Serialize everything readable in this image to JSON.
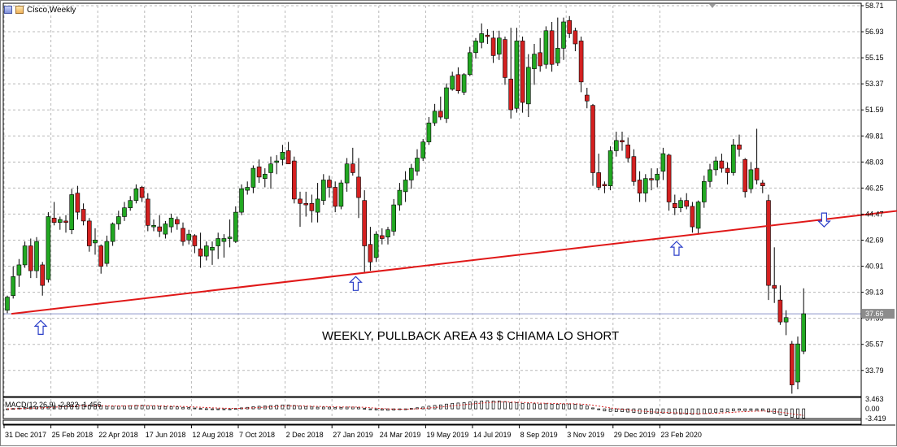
{
  "window": {
    "title": "Cisco,Weekly",
    "icon_names": [
      "window-icon",
      "chart-icon"
    ]
  },
  "colors": {
    "bull": "#22a822",
    "bear": "#d42020",
    "wick": "#000000",
    "grid": "#b8b8b8",
    "trendline": "#e01818",
    "arrow": "#2a3ec8",
    "current_price_line": "#8a93c9",
    "current_price_box": "#8c8c8c"
  },
  "chart_data": [
    {
      "type": "candlestick",
      "title": "Cisco,Weekly",
      "y_ticks": [
        "58.71",
        "56.93",
        "55.15",
        "53.37",
        "51.59",
        "49.81",
        "48.03",
        "46.25",
        "44.47",
        "42.69",
        "40.91",
        "39.13",
        "37.35",
        "35.57",
        "33.79"
      ],
      "ylim": [
        32.0,
        58.71
      ],
      "x_ticks": [
        "31 Dec 2017",
        "25 Feb 2018",
        "22 Apr 2018",
        "17 Jun 2018",
        "12 Aug 2018",
        "7 Oct 2018",
        "2 Dec 2018",
        "27 Jan 2019",
        "24 Mar 2019",
        "19 May 2019",
        "14 Jul 2019",
        "8 Sep 2019",
        "3 Nov 2019",
        "29 Dec 2019",
        "23 Feb 2020"
      ],
      "current_price": "37.66",
      "annotation": "WEEKLY, PULLBACK AREA 43 $ CHIAMA LO SHORT",
      "trendline": {
        "x": [
          0.7,
          163
        ],
        "y": [
          37.66,
          45.2
        ]
      },
      "arrows": [
        {
          "direction": "up",
          "x": 5.7,
          "y": 37.2
        },
        {
          "direction": "up",
          "x": 59.5,
          "y": 40.2
        },
        {
          "direction": "up",
          "x": 114.3,
          "y": 42.6
        },
        {
          "direction": "down",
          "x": 139.5,
          "y": 43.6
        }
      ],
      "candles": [
        {
          "o": 37.9,
          "h": 38.9,
          "l": 37.7,
          "c": 38.8
        },
        {
          "o": 38.9,
          "h": 40.9,
          "l": 38.7,
          "c": 40.2
        },
        {
          "o": 40.3,
          "h": 41.4,
          "l": 39.5,
          "c": 41.0
        },
        {
          "o": 41.0,
          "h": 42.6,
          "l": 40.8,
          "c": 42.3
        },
        {
          "o": 42.3,
          "h": 42.8,
          "l": 40.1,
          "c": 40.6
        },
        {
          "o": 40.6,
          "h": 42.9,
          "l": 40.1,
          "c": 42.6
        },
        {
          "o": 41.0,
          "h": 41.2,
          "l": 38.9,
          "c": 39.6
        },
        {
          "o": 40.0,
          "h": 44.6,
          "l": 39.8,
          "c": 44.3
        },
        {
          "o": 44.2,
          "h": 45.3,
          "l": 43.7,
          "c": 43.9
        },
        {
          "o": 43.9,
          "h": 44.3,
          "l": 43.4,
          "c": 44.1
        },
        {
          "o": 44.0,
          "h": 44.4,
          "l": 43.2,
          "c": 43.9
        },
        {
          "o": 43.4,
          "h": 46.2,
          "l": 43.1,
          "c": 45.8
        },
        {
          "o": 45.9,
          "h": 46.4,
          "l": 44.1,
          "c": 44.6
        },
        {
          "o": 44.8,
          "h": 45.2,
          "l": 43.7,
          "c": 44.0
        },
        {
          "o": 44.0,
          "h": 44.2,
          "l": 41.9,
          "c": 42.3
        },
        {
          "o": 42.5,
          "h": 43.5,
          "l": 41.7,
          "c": 42.7
        },
        {
          "o": 42.3,
          "h": 42.4,
          "l": 40.4,
          "c": 40.9
        },
        {
          "o": 41.1,
          "h": 43.0,
          "l": 40.9,
          "c": 42.6
        },
        {
          "o": 42.6,
          "h": 43.9,
          "l": 42.3,
          "c": 43.8
        },
        {
          "o": 43.8,
          "h": 44.7,
          "l": 43.4,
          "c": 44.3
        },
        {
          "o": 44.3,
          "h": 45.3,
          "l": 44.0,
          "c": 44.9
        },
        {
          "o": 44.9,
          "h": 45.7,
          "l": 44.7,
          "c": 45.4
        },
        {
          "o": 45.4,
          "h": 46.5,
          "l": 45.2,
          "c": 46.2
        },
        {
          "o": 46.3,
          "h": 46.4,
          "l": 45.3,
          "c": 45.6
        },
        {
          "o": 45.5,
          "h": 45.9,
          "l": 43.3,
          "c": 43.7
        },
        {
          "o": 43.6,
          "h": 44.1,
          "l": 43.3,
          "c": 43.7
        },
        {
          "o": 43.6,
          "h": 44.4,
          "l": 42.9,
          "c": 43.3
        },
        {
          "o": 43.1,
          "h": 44.0,
          "l": 42.8,
          "c": 43.8
        },
        {
          "o": 43.6,
          "h": 44.5,
          "l": 43.2,
          "c": 44.2
        },
        {
          "o": 44.1,
          "h": 44.3,
          "l": 43.4,
          "c": 43.8
        },
        {
          "o": 43.5,
          "h": 43.9,
          "l": 42.3,
          "c": 42.6
        },
        {
          "o": 42.7,
          "h": 43.4,
          "l": 42.4,
          "c": 43.1
        },
        {
          "o": 43.0,
          "h": 43.1,
          "l": 41.8,
          "c": 42.3
        },
        {
          "o": 42.1,
          "h": 43.2,
          "l": 40.8,
          "c": 41.6
        },
        {
          "o": 41.6,
          "h": 42.6,
          "l": 41.3,
          "c": 42.3
        },
        {
          "o": 42.0,
          "h": 42.6,
          "l": 41.0,
          "c": 42.2
        },
        {
          "o": 42.3,
          "h": 43.2,
          "l": 41.4,
          "c": 42.8
        },
        {
          "o": 42.6,
          "h": 43.1,
          "l": 41.5,
          "c": 42.8
        },
        {
          "o": 42.8,
          "h": 44.1,
          "l": 42.2,
          "c": 42.9
        },
        {
          "o": 42.6,
          "h": 45.0,
          "l": 42.5,
          "c": 44.6
        },
        {
          "o": 44.6,
          "h": 46.5,
          "l": 44.4,
          "c": 46.2
        },
        {
          "o": 46.1,
          "h": 46.7,
          "l": 45.8,
          "c": 46.3
        },
        {
          "o": 46.3,
          "h": 47.8,
          "l": 45.9,
          "c": 47.6
        },
        {
          "o": 47.7,
          "h": 48.2,
          "l": 46.6,
          "c": 47.0
        },
        {
          "o": 46.9,
          "h": 47.6,
          "l": 46.3,
          "c": 47.2
        },
        {
          "o": 47.3,
          "h": 48.4,
          "l": 46.2,
          "c": 47.9
        },
        {
          "o": 48.0,
          "h": 48.5,
          "l": 47.2,
          "c": 48.1
        },
        {
          "o": 48.2,
          "h": 49.2,
          "l": 47.8,
          "c": 48.7
        },
        {
          "o": 48.8,
          "h": 49.4,
          "l": 47.9,
          "c": 47.9
        },
        {
          "o": 48.1,
          "h": 48.4,
          "l": 45.2,
          "c": 45.5
        },
        {
          "o": 45.5,
          "h": 46.0,
          "l": 43.6,
          "c": 45.2
        },
        {
          "o": 45.2,
          "h": 46.0,
          "l": 44.3,
          "c": 45.1
        },
        {
          "o": 45.2,
          "h": 45.8,
          "l": 43.9,
          "c": 44.7
        },
        {
          "o": 44.6,
          "h": 46.6,
          "l": 43.9,
          "c": 45.5
        },
        {
          "o": 45.4,
          "h": 47.2,
          "l": 45.1,
          "c": 46.8
        },
        {
          "o": 46.8,
          "h": 47.1,
          "l": 45.6,
          "c": 46.3
        },
        {
          "o": 46.3,
          "h": 46.7,
          "l": 44.6,
          "c": 45.0
        },
        {
          "o": 45.0,
          "h": 46.8,
          "l": 44.8,
          "c": 46.6
        },
        {
          "o": 46.6,
          "h": 48.3,
          "l": 46.0,
          "c": 47.9
        },
        {
          "o": 47.9,
          "h": 49.0,
          "l": 47.1,
          "c": 47.3
        },
        {
          "o": 47.0,
          "h": 48.3,
          "l": 44.2,
          "c": 45.6
        },
        {
          "o": 45.4,
          "h": 46.1,
          "l": 40.5,
          "c": 42.3
        },
        {
          "o": 42.4,
          "h": 43.6,
          "l": 40.6,
          "c": 41.2
        },
        {
          "o": 41.5,
          "h": 43.3,
          "l": 41.2,
          "c": 43.1
        },
        {
          "o": 43.0,
          "h": 43.5,
          "l": 42.4,
          "c": 42.8
        },
        {
          "o": 42.9,
          "h": 43.6,
          "l": 42.4,
          "c": 43.4
        },
        {
          "o": 43.3,
          "h": 45.5,
          "l": 43.0,
          "c": 45.1
        },
        {
          "o": 45.1,
          "h": 46.6,
          "l": 44.7,
          "c": 46.1
        },
        {
          "o": 46.0,
          "h": 47.4,
          "l": 45.3,
          "c": 46.8
        },
        {
          "o": 46.8,
          "h": 47.9,
          "l": 46.2,
          "c": 47.6
        },
        {
          "o": 47.4,
          "h": 48.9,
          "l": 47.1,
          "c": 48.3
        },
        {
          "o": 48.3,
          "h": 49.6,
          "l": 48.1,
          "c": 49.4
        },
        {
          "o": 49.4,
          "h": 51.1,
          "l": 49.2,
          "c": 50.7
        },
        {
          "o": 50.7,
          "h": 52.0,
          "l": 50.5,
          "c": 51.5
        },
        {
          "o": 51.5,
          "h": 52.5,
          "l": 50.9,
          "c": 51.1
        },
        {
          "o": 51.0,
          "h": 53.4,
          "l": 50.7,
          "c": 53.1
        },
        {
          "o": 53.0,
          "h": 54.2,
          "l": 52.9,
          "c": 53.9
        },
        {
          "o": 54.0,
          "h": 54.5,
          "l": 52.7,
          "c": 52.9
        },
        {
          "o": 52.8,
          "h": 54.1,
          "l": 52.6,
          "c": 54.0
        },
        {
          "o": 54.0,
          "h": 55.9,
          "l": 53.9,
          "c": 55.5
        },
        {
          "o": 55.5,
          "h": 56.5,
          "l": 55.1,
          "c": 56.3
        },
        {
          "o": 56.2,
          "h": 57.5,
          "l": 55.8,
          "c": 56.8
        },
        {
          "o": 56.7,
          "h": 57.1,
          "l": 56.1,
          "c": 56.6
        },
        {
          "o": 56.5,
          "h": 57.0,
          "l": 54.8,
          "c": 55.3
        },
        {
          "o": 55.4,
          "h": 57.0,
          "l": 55.0,
          "c": 56.5
        },
        {
          "o": 56.4,
          "h": 56.6,
          "l": 53.3,
          "c": 53.8
        },
        {
          "o": 53.7,
          "h": 57.2,
          "l": 51.0,
          "c": 51.6
        },
        {
          "o": 51.7,
          "h": 57.2,
          "l": 51.4,
          "c": 56.3
        },
        {
          "o": 56.3,
          "h": 56.6,
          "l": 51.4,
          "c": 52.1
        },
        {
          "o": 52.0,
          "h": 55.4,
          "l": 51.1,
          "c": 54.5
        },
        {
          "o": 54.4,
          "h": 56.1,
          "l": 53.3,
          "c": 55.4
        },
        {
          "o": 55.5,
          "h": 56.5,
          "l": 54.2,
          "c": 54.6
        },
        {
          "o": 54.7,
          "h": 57.3,
          "l": 54.4,
          "c": 57.0
        },
        {
          "o": 57.0,
          "h": 57.6,
          "l": 54.2,
          "c": 54.7
        },
        {
          "o": 54.8,
          "h": 57.9,
          "l": 54.6,
          "c": 55.8
        },
        {
          "o": 55.8,
          "h": 57.9,
          "l": 55.0,
          "c": 57.6
        },
        {
          "o": 57.7,
          "h": 58.0,
          "l": 56.5,
          "c": 56.8
        },
        {
          "o": 57.0,
          "h": 57.2,
          "l": 55.6,
          "c": 56.1
        },
        {
          "o": 56.3,
          "h": 56.6,
          "l": 52.8,
          "c": 53.5
        },
        {
          "o": 52.6,
          "h": 53.1,
          "l": 51.7,
          "c": 52.2
        },
        {
          "o": 51.9,
          "h": 52.0,
          "l": 46.4,
          "c": 47.3
        },
        {
          "o": 47.3,
          "h": 48.6,
          "l": 46.1,
          "c": 46.3
        },
        {
          "o": 46.5,
          "h": 46.7,
          "l": 45.9,
          "c": 46.4
        },
        {
          "o": 46.4,
          "h": 49.1,
          "l": 46.1,
          "c": 48.8
        },
        {
          "o": 48.8,
          "h": 50.1,
          "l": 48.4,
          "c": 49.5
        },
        {
          "o": 49.5,
          "h": 50.1,
          "l": 48.8,
          "c": 49.4
        },
        {
          "o": 49.2,
          "h": 49.7,
          "l": 48.0,
          "c": 48.3
        },
        {
          "o": 48.4,
          "h": 48.9,
          "l": 46.4,
          "c": 46.7
        },
        {
          "o": 46.8,
          "h": 47.4,
          "l": 45.3,
          "c": 45.9
        },
        {
          "o": 45.9,
          "h": 47.2,
          "l": 45.3,
          "c": 46.9
        },
        {
          "o": 46.9,
          "h": 47.6,
          "l": 46.1,
          "c": 46.8
        },
        {
          "o": 46.8,
          "h": 47.6,
          "l": 46.3,
          "c": 47.2
        },
        {
          "o": 47.4,
          "h": 49.0,
          "l": 46.8,
          "c": 48.6
        },
        {
          "o": 48.5,
          "h": 48.6,
          "l": 44.7,
          "c": 45.3
        },
        {
          "o": 45.2,
          "h": 45.8,
          "l": 44.4,
          "c": 44.9
        },
        {
          "o": 44.9,
          "h": 45.6,
          "l": 44.6,
          "c": 45.4
        },
        {
          "o": 45.4,
          "h": 45.9,
          "l": 44.8,
          "c": 45.0
        },
        {
          "o": 45.0,
          "h": 45.3,
          "l": 43.2,
          "c": 43.6
        },
        {
          "o": 43.5,
          "h": 45.4,
          "l": 43.1,
          "c": 45.3
        },
        {
          "o": 45.3,
          "h": 47.1,
          "l": 44.9,
          "c": 46.7
        },
        {
          "o": 46.7,
          "h": 47.9,
          "l": 46.3,
          "c": 47.5
        },
        {
          "o": 47.5,
          "h": 48.4,
          "l": 47.1,
          "c": 48.1
        },
        {
          "o": 48.1,
          "h": 48.6,
          "l": 47.3,
          "c": 47.6
        },
        {
          "o": 47.6,
          "h": 48.0,
          "l": 46.5,
          "c": 47.3
        },
        {
          "o": 47.3,
          "h": 49.6,
          "l": 47.1,
          "c": 49.2
        },
        {
          "o": 49.2,
          "h": 49.9,
          "l": 48.4,
          "c": 48.9
        },
        {
          "o": 48.2,
          "h": 48.3,
          "l": 45.6,
          "c": 46.0
        },
        {
          "o": 46.2,
          "h": 48.0,
          "l": 45.9,
          "c": 47.5
        },
        {
          "o": 47.6,
          "h": 50.3,
          "l": 46.5,
          "c": 46.8
        },
        {
          "o": 46.6,
          "h": 46.8,
          "l": 45.9,
          "c": 46.4
        },
        {
          "o": 45.4,
          "h": 45.8,
          "l": 38.6,
          "c": 39.6
        },
        {
          "o": 39.6,
          "h": 42.2,
          "l": 38.4,
          "c": 39.4
        },
        {
          "o": 38.6,
          "h": 39.6,
          "l": 36.9,
          "c": 37.1
        },
        {
          "o": 37.1,
          "h": 37.9,
          "l": 36.2,
          "c": 37.4
        },
        {
          "o": 35.6,
          "h": 35.8,
          "l": 32.2,
          "c": 32.8
        },
        {
          "o": 33.0,
          "h": 36.1,
          "l": 32.5,
          "c": 35.6
        },
        {
          "o": 35.1,
          "h": 39.4,
          "l": 34.9,
          "c": 37.66
        }
      ]
    },
    {
      "type": "bar",
      "title": "MACD(12,26,9) -2.822 -1.456",
      "y_ticks": [
        "3.463",
        "0.00",
        "-3.419"
      ],
      "ylim": [
        -3.419,
        3.463
      ],
      "signal_style": "dotted red line",
      "histogram_style": "hollow outline bars"
    }
  ]
}
